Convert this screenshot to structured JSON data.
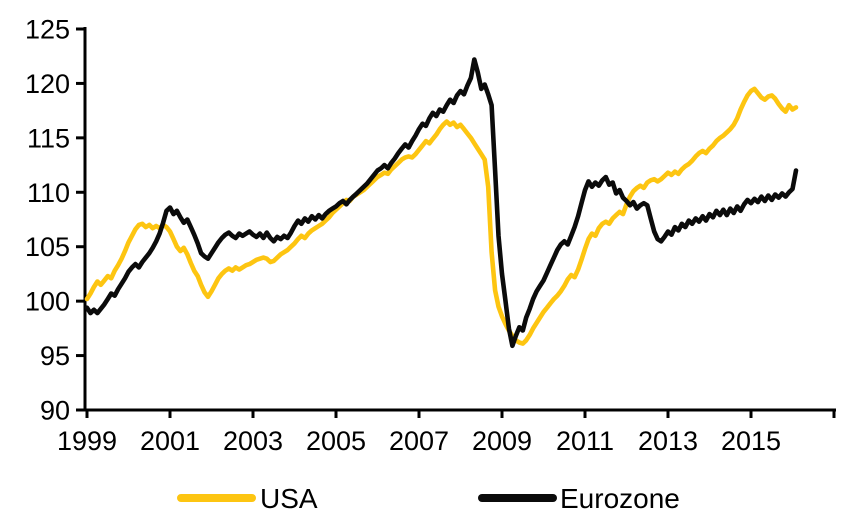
{
  "chart_data": {
    "type": "line",
    "title": "",
    "xlabel": "",
    "ylabel": "",
    "grid": false,
    "legend_position": "bottom",
    "x_axis": {
      "start_year": 1999,
      "end_year": 2017,
      "tick_years": [
        1999,
        2001,
        2003,
        2005,
        2007,
        2009,
        2011,
        2013,
        2015,
        2017
      ],
      "tick_labels": [
        "1999",
        "2001",
        "2003",
        "2005",
        "2007",
        "2009",
        "2011",
        "2013",
        "2015",
        ""
      ]
    },
    "y_axis": {
      "min": 90,
      "max": 125,
      "tick_step": 5,
      "ticks": [
        90,
        95,
        100,
        105,
        110,
        115,
        120,
        125
      ]
    },
    "series": [
      {
        "name": "USA",
        "color": "#FDC511",
        "start_year": 1999,
        "frequency": "monthly",
        "values": [
          100.2,
          100.7,
          101.3,
          101.8,
          101.5,
          101.9,
          102.3,
          102.1,
          102.8,
          103.3,
          103.9,
          104.6,
          105.4,
          106.0,
          106.6,
          107.0,
          107.1,
          106.8,
          107.0,
          106.7,
          106.9,
          106.7,
          107.0,
          106.8,
          106.4,
          105.7,
          105.0,
          104.6,
          104.9,
          104.3,
          103.5,
          102.8,
          102.3,
          101.5,
          100.8,
          100.4,
          100.9,
          101.5,
          102.1,
          102.5,
          102.8,
          103.0,
          102.8,
          103.1,
          102.9,
          103.1,
          103.3,
          103.4,
          103.6,
          103.8,
          103.9,
          104.0,
          103.9,
          103.6,
          103.7,
          104.0,
          104.3,
          104.5,
          104.7,
          105.0,
          105.3,
          105.7,
          106.0,
          105.8,
          106.2,
          106.5,
          106.7,
          106.9,
          107.1,
          107.4,
          107.7,
          108.1,
          108.4,
          108.7,
          109.0,
          109.3,
          109.2,
          109.6,
          109.8,
          110.0,
          110.2,
          110.5,
          110.8,
          111.1,
          111.4,
          111.6,
          111.8,
          111.7,
          112.1,
          112.4,
          112.7,
          113.0,
          113.2,
          113.3,
          113.2,
          113.5,
          113.9,
          114.3,
          114.7,
          114.5,
          114.9,
          115.3,
          115.8,
          116.2,
          116.5,
          116.2,
          116.4,
          116.0,
          116.2,
          115.8,
          115.4,
          115.0,
          114.5,
          114.0,
          113.5,
          113.0,
          110.5,
          104.5,
          101.0,
          99.5,
          98.6,
          97.9,
          97.3,
          96.8,
          96.4,
          96.2,
          96.1,
          96.4,
          96.9,
          97.5,
          98.0,
          98.5,
          99.0,
          99.4,
          99.8,
          100.2,
          100.5,
          100.9,
          101.4,
          102.0,
          102.4,
          102.2,
          102.9,
          103.8,
          104.8,
          105.7,
          106.2,
          106.0,
          106.7,
          107.1,
          107.3,
          107.1,
          107.6,
          107.9,
          108.2,
          108.0,
          108.9,
          109.6,
          110.1,
          110.4,
          110.6,
          110.4,
          110.9,
          111.1,
          111.2,
          111.0,
          111.2,
          111.5,
          111.8,
          111.6,
          111.9,
          111.7,
          112.1,
          112.4,
          112.6,
          112.9,
          113.3,
          113.6,
          113.8,
          113.6,
          114.0,
          114.3,
          114.7,
          115.0,
          115.2,
          115.5,
          115.8,
          116.2,
          116.8,
          117.6,
          118.3,
          118.9,
          119.3,
          119.5,
          119.1,
          118.7,
          118.5,
          118.8,
          118.9,
          118.6,
          118.1,
          117.7,
          117.4,
          118.0,
          117.6,
          117.8
        ]
      },
      {
        "name": "Eurozone",
        "color": "#0B0B0B",
        "start_year": 1999,
        "frequency": "monthly",
        "values": [
          99.4,
          98.9,
          99.2,
          98.9,
          99.3,
          99.7,
          100.2,
          100.7,
          100.5,
          101.1,
          101.6,
          102.1,
          102.7,
          103.1,
          103.4,
          103.1,
          103.6,
          104.0,
          104.4,
          104.9,
          105.5,
          106.2,
          107.2,
          108.3,
          108.6,
          108.0,
          108.3,
          107.7,
          107.2,
          107.5,
          106.8,
          106.1,
          105.3,
          104.4,
          104.1,
          103.9,
          104.4,
          104.9,
          105.4,
          105.8,
          106.1,
          106.3,
          106.0,
          105.8,
          106.2,
          106.0,
          106.2,
          106.4,
          106.1,
          105.9,
          106.2,
          105.8,
          106.3,
          105.8,
          105.5,
          105.9,
          105.7,
          106.0,
          105.8,
          106.3,
          106.9,
          107.4,
          107.1,
          107.6,
          107.3,
          107.8,
          107.5,
          107.9,
          107.6,
          108.0,
          108.3,
          108.5,
          108.7,
          109.0,
          109.2,
          108.9,
          109.3,
          109.6,
          109.9,
          110.2,
          110.5,
          110.8,
          111.2,
          111.6,
          112.0,
          112.2,
          112.5,
          112.2,
          112.7,
          113.1,
          113.6,
          114.0,
          114.4,
          114.1,
          114.7,
          115.2,
          115.8,
          116.3,
          116.1,
          116.8,
          117.3,
          117.0,
          117.6,
          117.4,
          118.0,
          118.5,
          118.2,
          118.9,
          119.3,
          119.0,
          119.8,
          120.5,
          122.2,
          121.0,
          119.5,
          119.9,
          119.0,
          118.0,
          112.0,
          106.0,
          102.5,
          100.0,
          97.5,
          95.9,
          96.8,
          97.6,
          97.3,
          98.5,
          99.3,
          100.2,
          100.9,
          101.4,
          101.9,
          102.6,
          103.3,
          104.0,
          104.7,
          105.2,
          105.5,
          105.2,
          106.0,
          106.8,
          107.8,
          109.0,
          110.2,
          111.0,
          110.5,
          110.9,
          110.6,
          111.1,
          111.4,
          110.7,
          110.9,
          109.9,
          110.2,
          109.5,
          109.2,
          108.8,
          109.1,
          108.5,
          108.8,
          109.0,
          108.8,
          107.6,
          106.4,
          105.7,
          105.5,
          105.9,
          106.4,
          106.1,
          106.8,
          106.5,
          107.1,
          106.8,
          107.4,
          107.1,
          107.6,
          107.3,
          107.8,
          107.4,
          108.0,
          107.7,
          108.3,
          107.9,
          108.4,
          107.9,
          108.5,
          108.1,
          108.7,
          108.3,
          108.9,
          109.3,
          109.0,
          109.4,
          109.1,
          109.6,
          109.2,
          109.7,
          109.3,
          109.8,
          109.5,
          109.9,
          109.6,
          110.0,
          110.3,
          112.0
        ]
      }
    ]
  },
  "legend": {
    "usa_label": "USA",
    "eurozone_label": "Eurozone"
  },
  "colors": {
    "usa_line": "#FDC511",
    "eurozone_line": "#0B0B0B",
    "axis": "#000000",
    "background": "#FFFFFF",
    "text": "#000000"
  }
}
